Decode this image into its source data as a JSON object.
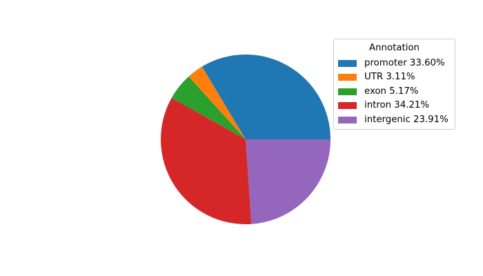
{
  "legend": {
    "title": "Annotation",
    "items": [
      {
        "label": "promoter 33.60%",
        "color": "#1f77b4"
      },
      {
        "label": "UTR 3.11%",
        "color": "#ff7f0e"
      },
      {
        "label": "exon 5.17%",
        "color": "#2ca02c"
      },
      {
        "label": "intron 34.21%",
        "color": "#d62728"
      },
      {
        "label": "intergenic 23.91%",
        "color": "#9467bd"
      }
    ]
  },
  "chart_data": {
    "type": "pie",
    "title": "",
    "legend_title": "Annotation",
    "legend_position": "upper right",
    "categories": [
      "promoter",
      "UTR",
      "exon",
      "intron",
      "intergenic"
    ],
    "values": [
      33.6,
      3.11,
      5.17,
      34.21,
      23.91
    ],
    "unit": "%",
    "colors": [
      "#1f77b4",
      "#ff7f0e",
      "#2ca02c",
      "#d62728",
      "#9467bd"
    ],
    "start_angle_deg": 0,
    "direction": "counterclockwise"
  }
}
